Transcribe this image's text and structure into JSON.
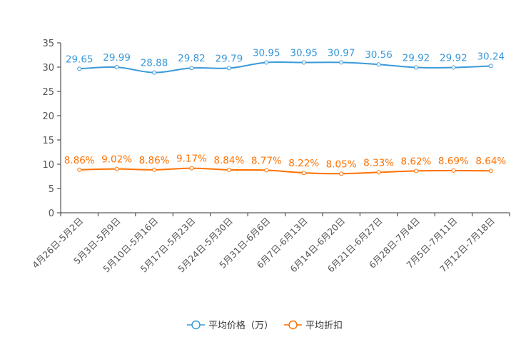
{
  "chart_data": {
    "type": "line",
    "title": "",
    "xlabel": "",
    "ylabel": "",
    "ylim": [
      0,
      35
    ],
    "yticks": [
      0,
      5,
      10,
      15,
      20,
      25,
      30,
      35
    ],
    "grid": false,
    "legend_position": "bottom-center",
    "categories": [
      "4月26日-5月2日",
      "5月3日-5月9日",
      "5月10日-5月16日",
      "5月17日-5月23日",
      "5月24日-5月30日",
      "5月31日-6月6日",
      "6月7日-6月13日",
      "6月14日-6月20日",
      "6月21日-6月27日",
      "6月28日-7月4日",
      "7月5日-7月11日",
      "7月12日-7月18日"
    ],
    "series": [
      {
        "name": "平均价格（万）",
        "color": "#3a9ad9",
        "values": [
          29.65,
          29.99,
          28.88,
          29.82,
          29.79,
          30.95,
          30.95,
          30.97,
          30.56,
          29.92,
          29.92,
          30.24
        ],
        "labels": [
          "29.65",
          "29.99",
          "28.88",
          "29.82",
          "29.79",
          "30.95",
          "30.95",
          "30.97",
          "30.56",
          "29.92",
          "29.92",
          "30.24"
        ]
      },
      {
        "name": "平均折扣",
        "color": "#ff7100",
        "values": [
          8.86,
          9.02,
          8.86,
          9.17,
          8.84,
          8.77,
          8.22,
          8.05,
          8.33,
          8.62,
          8.69,
          8.64
        ],
        "labels": [
          "8.86%",
          "9.02%",
          "8.86%",
          "9.17%",
          "8.84%",
          "8.77%",
          "8.22%",
          "8.05%",
          "8.33%",
          "8.62%",
          "8.69%",
          "8.64%"
        ]
      }
    ]
  }
}
